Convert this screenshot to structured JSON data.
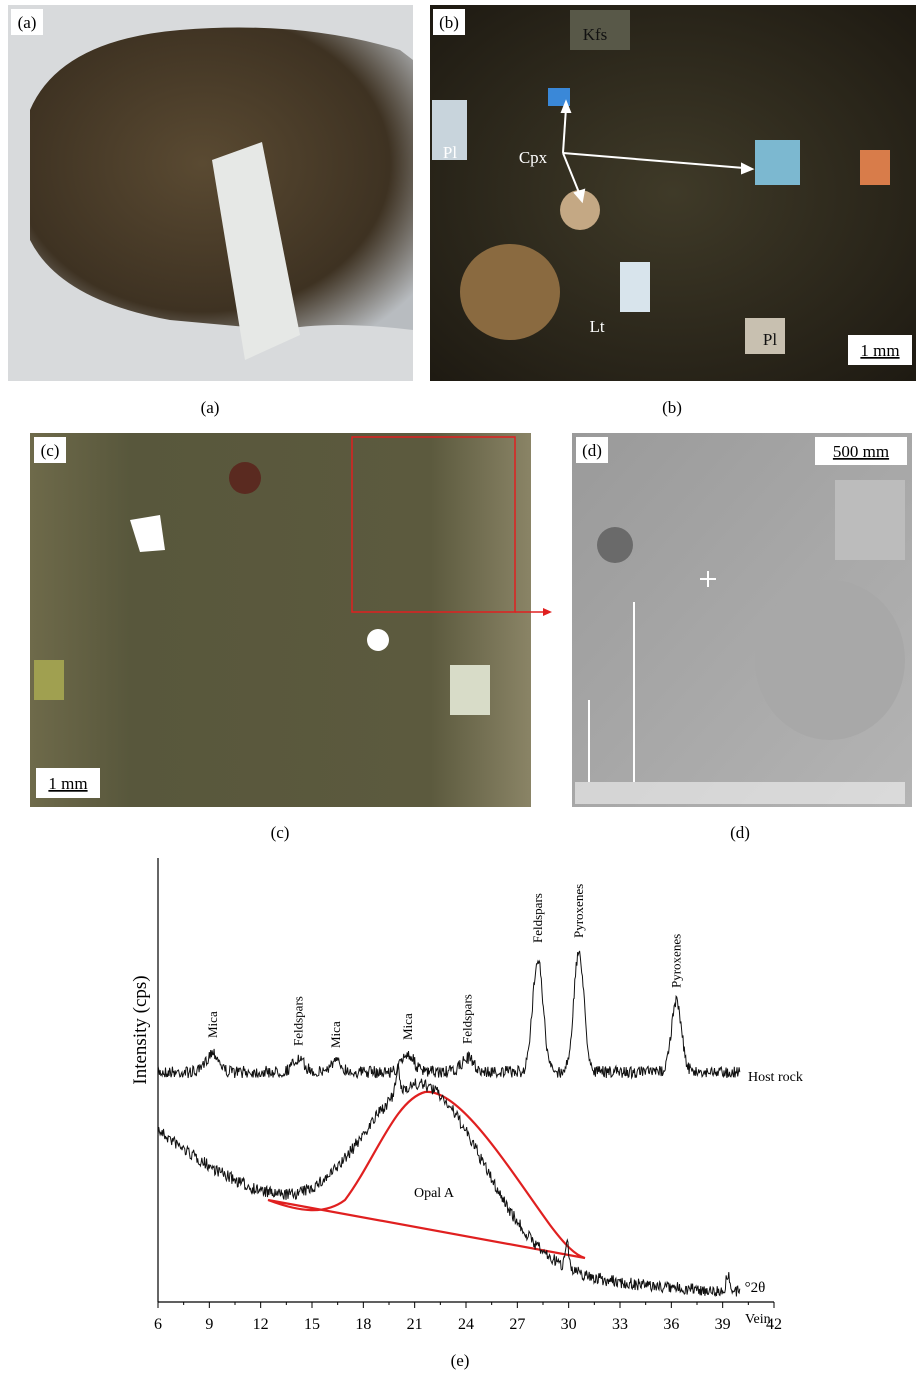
{
  "panels": [
    {
      "label": "(a)",
      "caption": "(a)"
    },
    {
      "label": "(b)",
      "caption": "(b)",
      "annotations": [
        "Kfs",
        "Pl",
        "Cpx",
        "Lt",
        "Pl"
      ],
      "scale_bar": "1 mm"
    },
    {
      "label": "(c)",
      "caption": "(c)",
      "scale_bar": "1 mm"
    },
    {
      "label": "(d)",
      "caption": "(d)",
      "scale_bar": "500 mm"
    }
  ],
  "panel_e": {
    "caption": "(e)",
    "y_label": "Intensity (cps)",
    "x_label": "°2θ",
    "xlim": [
      6,
      42
    ],
    "xticks": [
      6,
      9,
      12,
      15,
      18,
      21,
      24,
      27,
      30,
      33,
      36,
      39,
      42
    ],
    "host_label": "Host rock",
    "vein_label": "Vein",
    "fit_label": "Opal A",
    "annotations": [
      {
        "label": "Mica",
        "x": 9.2,
        "intensity": 20
      },
      {
        "label": "Feldspars",
        "x": 14.2,
        "intensity": 12
      },
      {
        "label": "Mica",
        "x": 16.4,
        "intensity": 10
      },
      {
        "label": "Mica",
        "x": 20.6,
        "intensity": 18
      },
      {
        "label": "Feldspars",
        "x": 24.1,
        "intensity": 14
      },
      {
        "label": "Feldspars",
        "x": 28.2,
        "intensity": 115
      },
      {
        "label": "Pyroxenes",
        "x": 30.6,
        "intensity": 120
      },
      {
        "label": "Pyroxenes",
        "x": 36.3,
        "intensity": 70
      }
    ]
  }
}
